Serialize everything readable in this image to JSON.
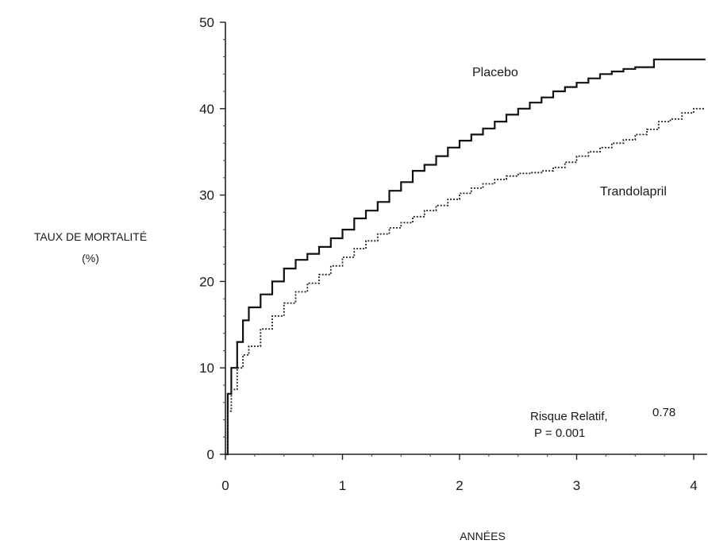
{
  "chart_data": {
    "type": "line",
    "title": "",
    "xlabel": "ANNÉES",
    "ylabel_line1": "TAUX DE MORTALITÉ",
    "ylabel_line2": "(%)",
    "xlim": [
      0,
      4.1
    ],
    "ylim": [
      0,
      50
    ],
    "x_ticks": [
      0,
      1,
      2,
      3,
      4
    ],
    "y_ticks": [
      0,
      10,
      20,
      30,
      40,
      50
    ],
    "grid": false,
    "legend": "inline labels",
    "series": [
      {
        "name": "Placebo",
        "style": "solid",
        "color": "#111111",
        "x": [
          0,
          0.02,
          0.05,
          0.1,
          0.15,
          0.2,
          0.3,
          0.4,
          0.5,
          0.6,
          0.7,
          0.8,
          0.9,
          1.0,
          1.1,
          1.2,
          1.3,
          1.4,
          1.5,
          1.6,
          1.7,
          1.8,
          1.9,
          2.0,
          2.1,
          2.2,
          2.3,
          2.4,
          2.5,
          2.6,
          2.7,
          2.8,
          2.9,
          3.0,
          3.1,
          3.2,
          3.3,
          3.4,
          3.5,
          3.6,
          3.65,
          3.66,
          3.8,
          4.0,
          4.1
        ],
        "y": [
          0,
          7,
          10,
          13,
          15.5,
          17,
          18.5,
          20,
          21.5,
          22.5,
          23.2,
          24,
          25,
          26,
          27.3,
          28.2,
          29.2,
          30.5,
          31.5,
          32.8,
          33.5,
          34.5,
          35.5,
          36.3,
          37,
          37.7,
          38.5,
          39.3,
          40,
          40.7,
          41.3,
          42,
          42.5,
          43,
          43.5,
          44,
          44.3,
          44.6,
          44.8,
          44.8,
          44.8,
          45.7,
          45.7,
          45.7,
          45.7
        ]
      },
      {
        "name": "Trandolapril",
        "style": "dotted",
        "color": "#222222",
        "x": [
          0,
          0.02,
          0.05,
          0.1,
          0.15,
          0.2,
          0.3,
          0.4,
          0.5,
          0.6,
          0.7,
          0.8,
          0.9,
          1.0,
          1.1,
          1.2,
          1.3,
          1.4,
          1.5,
          1.6,
          1.7,
          1.8,
          1.9,
          2.0,
          2.1,
          2.2,
          2.3,
          2.4,
          2.5,
          2.6,
          2.7,
          2.8,
          2.9,
          3.0,
          3.1,
          3.2,
          3.3,
          3.4,
          3.5,
          3.6,
          3.7,
          3.8,
          3.9,
          4.0,
          4.1
        ],
        "y": [
          0,
          5,
          7.5,
          10,
          11.5,
          12.5,
          14.5,
          16,
          17.5,
          18.8,
          19.8,
          20.8,
          21.8,
          22.8,
          23.8,
          24.7,
          25.5,
          26.2,
          26.8,
          27.5,
          28.2,
          28.8,
          29.5,
          30.2,
          30.8,
          31.3,
          31.8,
          32.2,
          32.5,
          32.6,
          32.8,
          33.2,
          33.8,
          34.5,
          35,
          35.5,
          36,
          36.4,
          37,
          37.6,
          38.5,
          38.8,
          39.5,
          40,
          40
        ]
      }
    ],
    "annotation": {
      "line1_text": "Risque Relatif,",
      "line1_value": "0.78",
      "line2": "P = 0.001"
    }
  }
}
